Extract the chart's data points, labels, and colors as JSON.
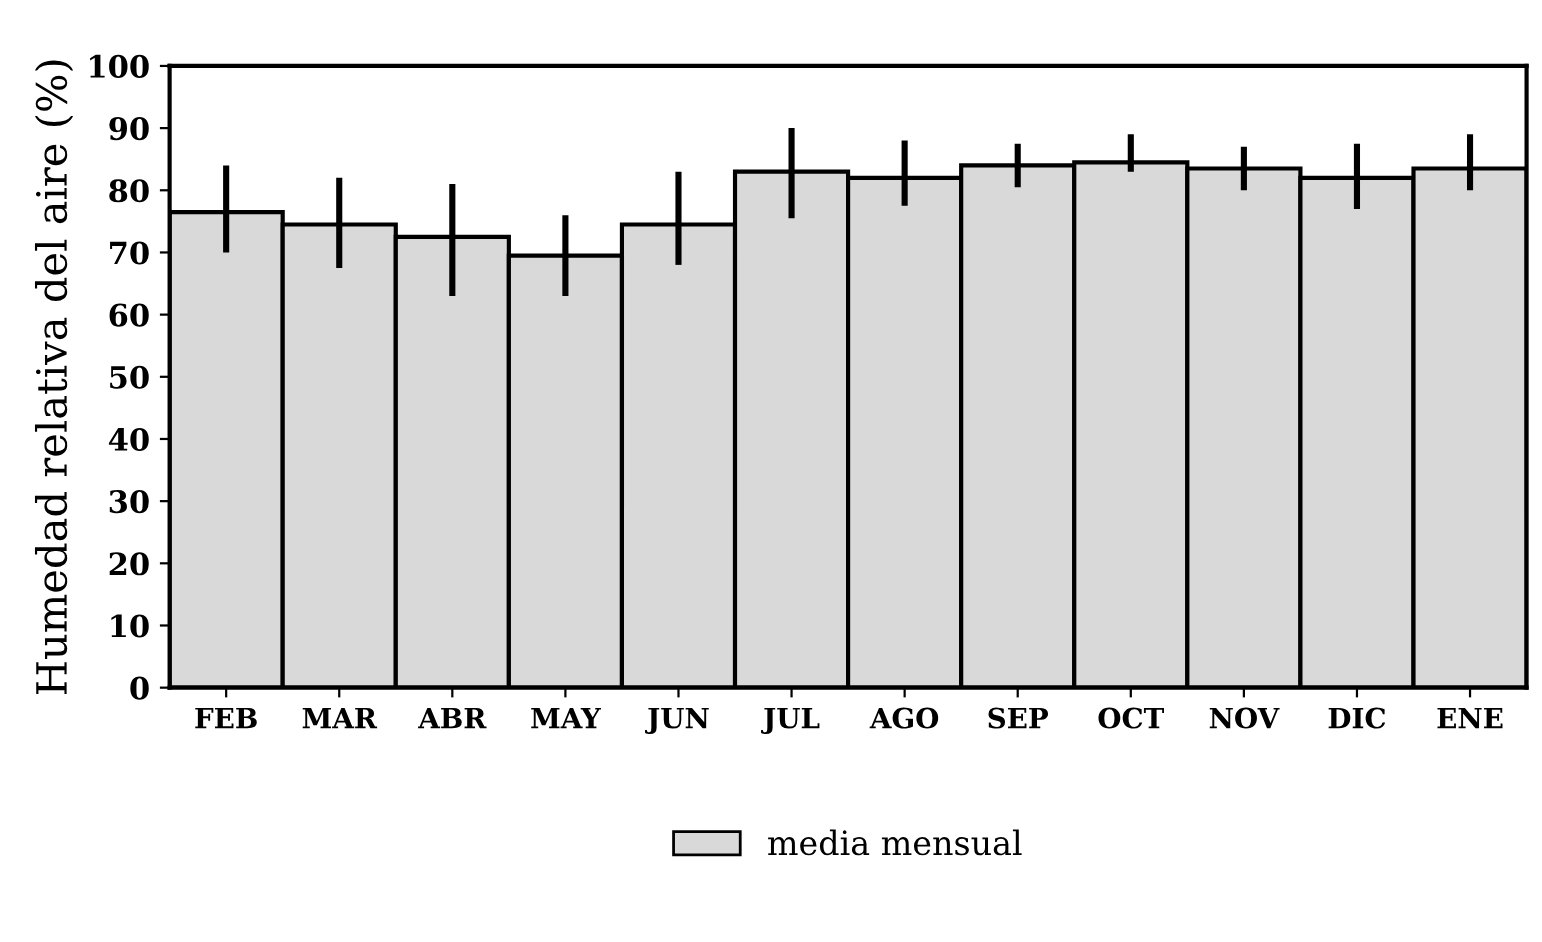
{
  "chart_data": {
    "type": "bar",
    "ylabel": "Humedad relativa del aire (%)",
    "categories": [
      "FEB",
      "MAR",
      "ABR",
      "MAY",
      "JUN",
      "JUL",
      "AGO",
      "SEP",
      "OCT",
      "NOV",
      "DIC",
      "ENE"
    ],
    "series": [
      {
        "name": "media mensual",
        "color": "#d9d9d9",
        "values": [
          76.5,
          74.5,
          72.5,
          69.5,
          74.5,
          83,
          82,
          84,
          84.5,
          83.5,
          82,
          83.5
        ],
        "errors": [
          [
            70,
            84
          ],
          [
            67.5,
            82
          ],
          [
            63,
            81
          ],
          [
            63,
            76
          ],
          [
            68,
            83
          ],
          [
            75.5,
            90
          ],
          [
            77.5,
            88
          ],
          [
            80.5,
            87.5
          ],
          [
            83,
            89
          ],
          [
            80,
            87
          ],
          [
            77,
            87.5
          ],
          [
            80,
            89
          ]
        ]
      }
    ],
    "ylim": [
      0,
      100
    ],
    "yticks": [
      0,
      10,
      20,
      30,
      40,
      50,
      60,
      70,
      80,
      90,
      100
    ],
    "grid": false,
    "legend": "bottom"
  }
}
